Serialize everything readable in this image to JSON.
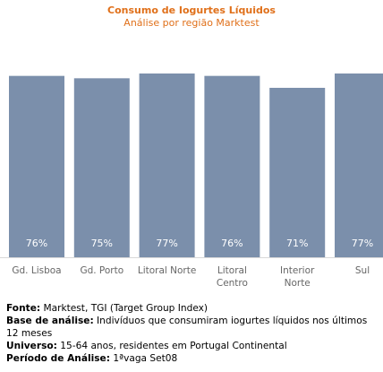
{
  "chart_data": {
    "type": "bar",
    "title": "Consumo de Iogurtes Líquidos",
    "subtitle": "Análise por região Marktest",
    "categories": [
      [
        "Gd. Lisboa"
      ],
      [
        "Gd. Porto"
      ],
      [
        "Litoral Norte"
      ],
      [
        "Litoral",
        "Centro"
      ],
      [
        "Interior",
        "Norte"
      ],
      [
        "Sul"
      ]
    ],
    "values": [
      76,
      75,
      77,
      76,
      71,
      77
    ],
    "value_labels": [
      "76%",
      "75%",
      "77%",
      "76%",
      "71%",
      "77%"
    ],
    "ylim": [
      0,
      77
    ],
    "grid": false,
    "legend": "none",
    "bar_color": "#7b8fab",
    "label_color": "#ffffff",
    "axis_color": "#d9d9d9",
    "text_color": "#666666"
  },
  "source_notes": [
    {
      "label": "Fonte:",
      "text": " Marktest, TGI (Target Group Index)"
    },
    {
      "label": "Base de análise:",
      "text": " Indivíduos que consumiram iogurtes líquidos nos últimos 12 meses"
    },
    {
      "label": "Universo:",
      "text": " 15-64 anos, residentes em Portugal Continental"
    },
    {
      "label": "Período de Análise:",
      "text": " 1ªvaga Set08"
    }
  ]
}
